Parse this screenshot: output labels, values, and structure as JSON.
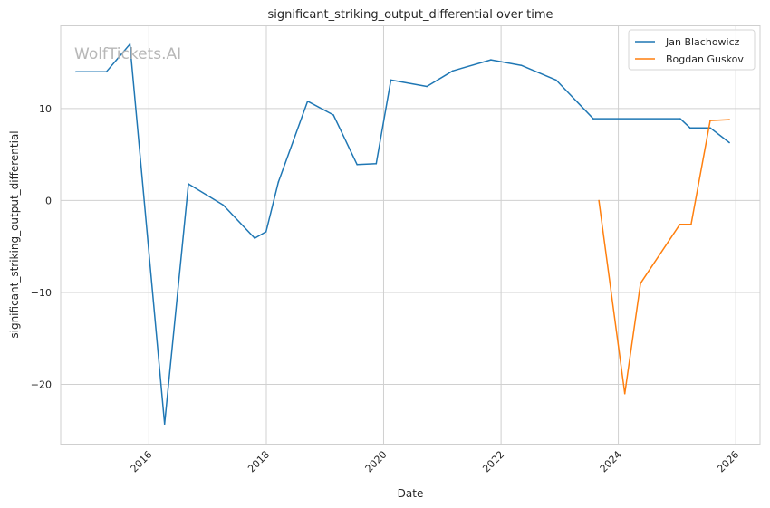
{
  "chart_data": {
    "type": "line",
    "title": "significant_striking_output_differential over time",
    "xlabel": "Date",
    "ylabel": "significant_striking_output_differential",
    "watermark": "WolfTickets.AI",
    "xlim": [
      "2014-07-01",
      "2026-06-01"
    ],
    "ylim": [
      -26.5,
      19
    ],
    "x_ticks": [
      {
        "date": "2016-01-01",
        "label": "2016"
      },
      {
        "date": "2018-01-01",
        "label": "2018"
      },
      {
        "date": "2020-01-01",
        "label": "2020"
      },
      {
        "date": "2022-01-01",
        "label": "2022"
      },
      {
        "date": "2024-01-01",
        "label": "2024"
      },
      {
        "date": "2026-01-01",
        "label": "2026"
      }
    ],
    "y_ticks": [
      {
        "value": -20,
        "label": "−20"
      },
      {
        "value": -10,
        "label": "−10"
      },
      {
        "value": 0,
        "label": "0"
      },
      {
        "value": 10,
        "label": "10"
      }
    ],
    "grid": true,
    "legend_position": "top-right",
    "series": [
      {
        "name": "Jan Blachowicz",
        "color": "#1f77b4",
        "points": [
          {
            "x": "2014-10-04",
            "y": 14.0
          },
          {
            "x": "2015-04-11",
            "y": 14.0
          },
          {
            "x": "2015-09-05",
            "y": 17.0
          },
          {
            "x": "2016-04-08",
            "y": -24.3
          },
          {
            "x": "2016-09-03",
            "y": 1.8
          },
          {
            "x": "2017-04-08",
            "y": -0.5
          },
          {
            "x": "2017-10-21",
            "y": -4.1
          },
          {
            "x": "2017-12-30",
            "y": -3.4
          },
          {
            "x": "2018-03-17",
            "y": 2.0
          },
          {
            "x": "2018-09-15",
            "y": 10.8
          },
          {
            "x": "2019-02-23",
            "y": 9.3
          },
          {
            "x": "2019-07-20",
            "y": 3.9
          },
          {
            "x": "2019-11-16",
            "y": 4.0
          },
          {
            "x": "2020-02-15",
            "y": 13.1
          },
          {
            "x": "2020-09-26",
            "y": 12.4
          },
          {
            "x": "2021-03-06",
            "y": 14.1
          },
          {
            "x": "2021-10-30",
            "y": 15.3
          },
          {
            "x": "2022-05-07",
            "y": 14.7
          },
          {
            "x": "2022-12-10",
            "y": 13.1
          },
          {
            "x": "2023-07-29",
            "y": 8.9
          },
          {
            "x": "2025-01-20",
            "y": 8.9
          },
          {
            "x": "2025-03-22",
            "y": 7.9
          },
          {
            "x": "2025-07-26",
            "y": 7.9
          },
          {
            "x": "2025-11-22",
            "y": 6.3
          }
        ]
      },
      {
        "name": "Bogdan Guskov",
        "color": "#ff7f0e",
        "points": [
          {
            "x": "2023-09-02",
            "y": 0.0
          },
          {
            "x": "2024-02-10",
            "y": -21.0
          },
          {
            "x": "2024-05-18",
            "y": -9.0
          },
          {
            "x": "2025-01-18",
            "y": -2.6
          },
          {
            "x": "2025-03-29",
            "y": -2.6
          },
          {
            "x": "2025-07-26",
            "y": 8.7
          },
          {
            "x": "2025-11-22",
            "y": 8.8
          }
        ]
      }
    ]
  }
}
